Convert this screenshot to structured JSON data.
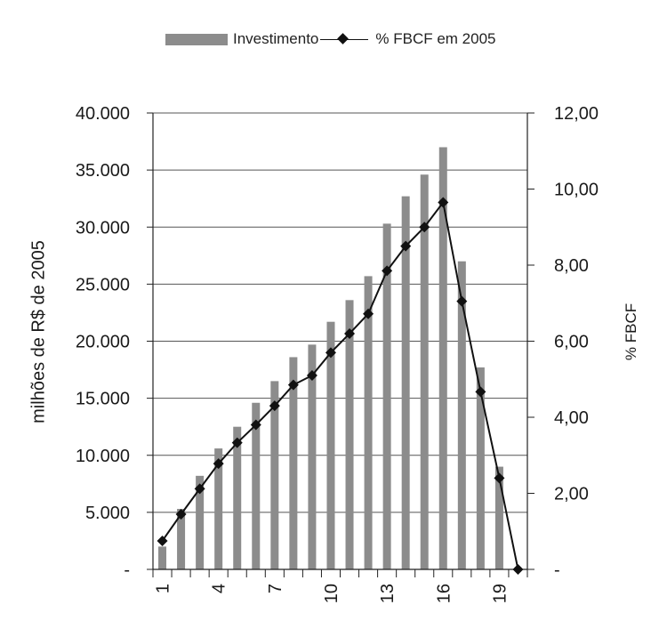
{
  "chart_data": {
    "type": "bar",
    "legend": {
      "placement": "top",
      "bar_label": "Investimento",
      "line_label": "% FBCF em 2005"
    },
    "ylabel_left": "milhões de R$ de 2005",
    "ylabel_right": "% FBCF",
    "y_left": {
      "min": 0,
      "max": 40000,
      "ticks": [
        0,
        5000,
        10000,
        15000,
        20000,
        25000,
        30000,
        35000,
        40000
      ],
      "tick_labels": [
        "-",
        "5.000",
        "10.000",
        "15.000",
        "20.000",
        "25.000",
        "30.000",
        "35.000",
        "40.000"
      ]
    },
    "y_right": {
      "min": 0,
      "max": 12,
      "ticks": [
        0,
        2,
        4,
        6,
        8,
        10,
        12
      ],
      "tick_labels": [
        "-",
        "2,00",
        "4,00",
        "6,00",
        "8,00",
        "10,00",
        "12,00"
      ]
    },
    "categories": [
      1,
      2,
      3,
      4,
      5,
      6,
      7,
      8,
      9,
      10,
      11,
      12,
      13,
      14,
      15,
      16,
      17,
      18,
      19,
      20
    ],
    "x_tick_labels": [
      "1",
      "4",
      "7",
      "10",
      "13",
      "16",
      "19"
    ],
    "x_tick_label_categories": [
      1,
      4,
      7,
      10,
      13,
      16,
      19
    ],
    "grid": true,
    "series": [
      {
        "name": "Investimento",
        "type": "bar",
        "axis": "left",
        "color": "#8c8c8c",
        "values": [
          2000,
          5300,
          8200,
          10600,
          12500,
          14600,
          16500,
          18600,
          19700,
          21700,
          23600,
          25700,
          30300,
          32700,
          34600,
          37000,
          27000,
          17700,
          9000,
          0
        ]
      },
      {
        "name": "% FBCF em 2005",
        "type": "line",
        "axis": "right",
        "color": "#111111",
        "values": [
          0.75,
          1.45,
          2.12,
          2.78,
          3.33,
          3.8,
          4.3,
          4.85,
          5.1,
          5.7,
          6.2,
          6.72,
          7.85,
          8.5,
          9.0,
          9.65,
          7.05,
          4.67,
          2.4,
          0.0
        ]
      }
    ]
  }
}
